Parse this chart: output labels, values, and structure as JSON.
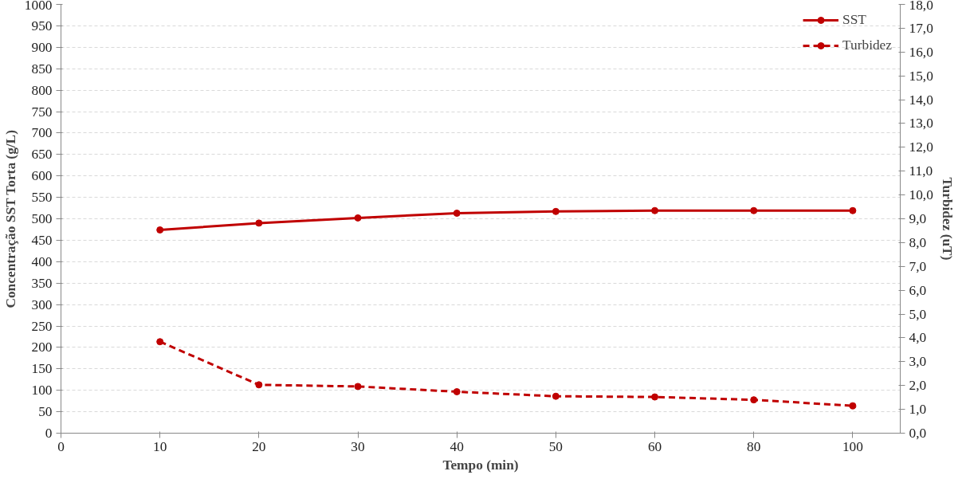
{
  "chart_data": {
    "type": "line",
    "xlabel": "Tempo (min)",
    "ylabel": "Concentração SST Torta (g/L)",
    "y2label": "Turbidez (uT)",
    "categories": [
      "0",
      "10",
      "20",
      "30",
      "40",
      "50",
      "60",
      "80",
      "100"
    ],
    "series": [
      {
        "name": "SST",
        "color": "#c00000",
        "line_style": "solid",
        "values": [
          null,
          474,
          490,
          502,
          513,
          517,
          519,
          519,
          519
        ]
      },
      {
        "name": "Turbidez",
        "color": "#c00000",
        "line_style": "dashed",
        "axis": "y2",
        "values": [
          null,
          3.84,
          2.03,
          1.96,
          1.74,
          1.55,
          1.52,
          1.4,
          1.15
        ]
      }
    ],
    "ylim": [
      0,
      1000
    ],
    "yticks": [
      0,
      50,
      100,
      150,
      200,
      250,
      300,
      350,
      400,
      450,
      500,
      550,
      600,
      650,
      700,
      750,
      800,
      850,
      900,
      950,
      1000
    ],
    "y2lim": [
      0,
      18
    ],
    "y2ticks": [
      {
        "value": 0,
        "label": "0,0"
      },
      {
        "value": 1,
        "label": "1,0"
      },
      {
        "value": 2,
        "label": "2,0"
      },
      {
        "value": 3,
        "label": "3,0"
      },
      {
        "value": 4,
        "label": "4,0"
      },
      {
        "value": 5,
        "label": "5,0"
      },
      {
        "value": 6,
        "label": "6,0"
      },
      {
        "value": 7,
        "label": "7,0"
      },
      {
        "value": 8,
        "label": "8,0"
      },
      {
        "value": 9,
        "label": "9,0"
      },
      {
        "value": 10,
        "label": "10,0"
      },
      {
        "value": 11,
        "label": "11,0"
      },
      {
        "value": 12,
        "label": "12,0"
      },
      {
        "value": 13,
        "label": "13,0"
      },
      {
        "value": 14,
        "label": "14,0"
      },
      {
        "value": 15,
        "label": "15,0"
      },
      {
        "value": 16,
        "label": "16,0"
      },
      {
        "value": 17,
        "label": "17,0"
      },
      {
        "value": 18,
        "label": "18,0"
      }
    ],
    "grid": "y",
    "legend": "top right",
    "marker": "circle"
  }
}
